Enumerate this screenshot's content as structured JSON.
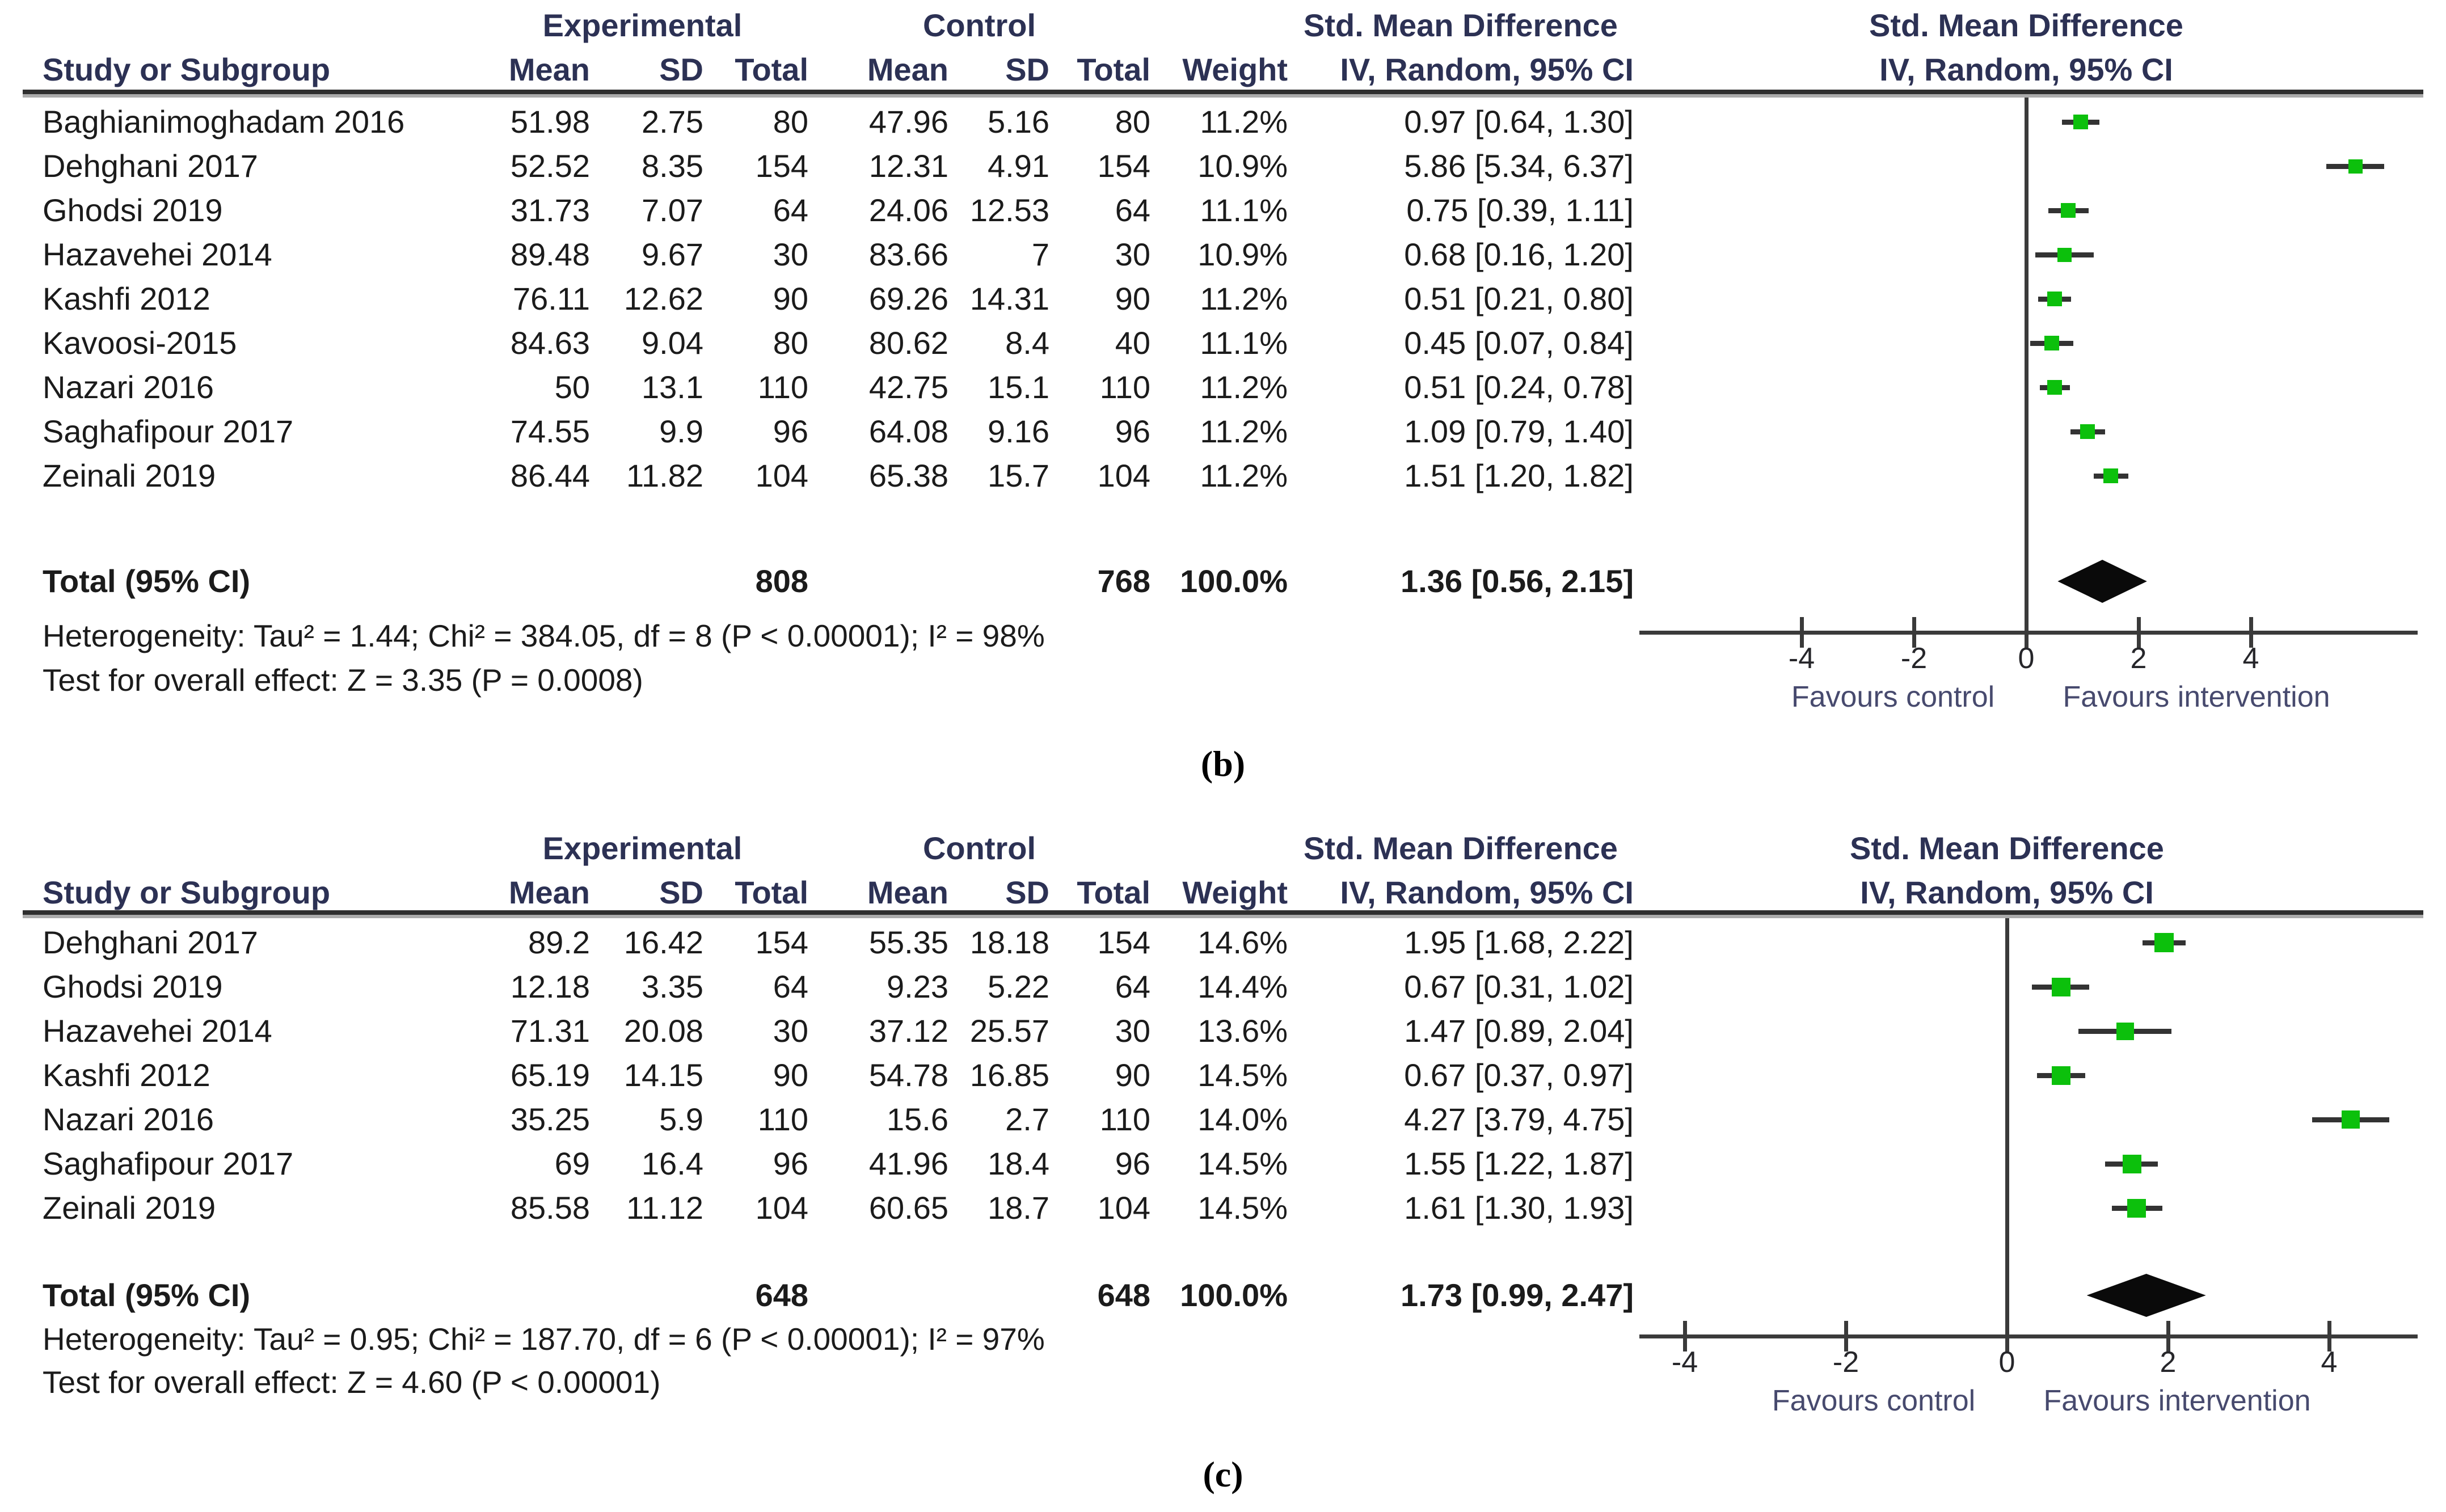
{
  "figure": {
    "panels": [
      {
        "id": "b",
        "label": "(b)",
        "group_headers": {
          "experimental": "Experimental",
          "control": "Control",
          "smd": "Std. Mean Difference",
          "plot_line1": "Std. Mean Difference",
          "plot_line2": "IV, Random, 95% CI"
        },
        "columns": {
          "study": "Study or Subgroup",
          "mean1": "Mean",
          "sd1": "SD",
          "total1": "Total",
          "mean2": "Mean",
          "sd2": "SD",
          "total2": "Total",
          "weight": "Weight",
          "ci": "IV, Random, 95% CI"
        },
        "rows": [
          {
            "study": "Baghianimoghadam 2016",
            "mean1": "51.98",
            "sd1": "2.75",
            "total1": "80",
            "mean2": "47.96",
            "sd2": "5.16",
            "total2": "80",
            "weight": "11.2%",
            "ci_text": "0.97 [0.64, 1.30]",
            "est": 0.97,
            "lo": 0.64,
            "hi": 1.3,
            "w": 11.2
          },
          {
            "study": "Dehghani 2017",
            "mean1": "52.52",
            "sd1": "8.35",
            "total1": "154",
            "mean2": "12.31",
            "sd2": "4.91",
            "total2": "154",
            "weight": "10.9%",
            "ci_text": "5.86 [5.34, 6.37]",
            "est": 5.86,
            "lo": 5.34,
            "hi": 6.37,
            "w": 10.9
          },
          {
            "study": "Ghodsi 2019",
            "mean1": "31.73",
            "sd1": "7.07",
            "total1": "64",
            "mean2": "24.06",
            "sd2": "12.53",
            "total2": "64",
            "weight": "11.1%",
            "ci_text": "0.75 [0.39, 1.11]",
            "est": 0.75,
            "lo": 0.39,
            "hi": 1.11,
            "w": 11.1
          },
          {
            "study": "Hazavehei 2014",
            "mean1": "89.48",
            "sd1": "9.67",
            "total1": "30",
            "mean2": "83.66",
            "sd2": "7",
            "total2": "30",
            "weight": "10.9%",
            "ci_text": "0.68 [0.16, 1.20]",
            "est": 0.68,
            "lo": 0.16,
            "hi": 1.2,
            "w": 10.9
          },
          {
            "study": "Kashfi 2012",
            "mean1": "76.11",
            "sd1": "12.62",
            "total1": "90",
            "mean2": "69.26",
            "sd2": "14.31",
            "total2": "90",
            "weight": "11.2%",
            "ci_text": "0.51 [0.21, 0.80]",
            "est": 0.51,
            "lo": 0.21,
            "hi": 0.8,
            "w": 11.2
          },
          {
            "study": "Kavoosi-2015",
            "mean1": "84.63",
            "sd1": "9.04",
            "total1": "80",
            "mean2": "80.62",
            "sd2": "8.4",
            "total2": "40",
            "weight": "11.1%",
            "ci_text": "0.45 [0.07, 0.84]",
            "est": 0.45,
            "lo": 0.07,
            "hi": 0.84,
            "w": 11.1
          },
          {
            "study": "Nazari 2016",
            "mean1": "50",
            "sd1": "13.1",
            "total1": "110",
            "mean2": "42.75",
            "sd2": "15.1",
            "total2": "110",
            "weight": "11.2%",
            "ci_text": "0.51 [0.24, 0.78]",
            "est": 0.51,
            "lo": 0.24,
            "hi": 0.78,
            "w": 11.2
          },
          {
            "study": "Saghafipour 2017",
            "mean1": "74.55",
            "sd1": "9.9",
            "total1": "96",
            "mean2": "64.08",
            "sd2": "9.16",
            "total2": "96",
            "weight": "11.2%",
            "ci_text": "1.09 [0.79, 1.40]",
            "est": 1.09,
            "lo": 0.79,
            "hi": 1.4,
            "w": 11.2
          },
          {
            "study": "Zeinali 2019",
            "mean1": "86.44",
            "sd1": "11.82",
            "total1": "104",
            "mean2": "65.38",
            "sd2": "15.7",
            "total2": "104",
            "weight": "11.2%",
            "ci_text": "1.51 [1.20, 1.82]",
            "est": 1.51,
            "lo": 1.2,
            "hi": 1.82,
            "w": 11.2
          }
        ],
        "total": {
          "label": "Total (95% CI)",
          "total1": "808",
          "total2": "768",
          "weight": "100.0%",
          "ci_text": "1.36 [0.56, 2.15]",
          "est": 1.36,
          "lo": 0.56,
          "hi": 2.15
        },
        "heterogeneity": "Heterogeneity: Tau² = 1.44; Chi² = 384.05, df = 8 (P < 0.00001); I² = 98%",
        "overall_effect": "Test for overall effect: Z = 3.35 (P = 0.0008)",
        "axis": {
          "ticks": [
            -4,
            -2,
            0,
            2,
            4
          ],
          "favours_left": "Favours control",
          "favours_right": "Favours intervention"
        }
      },
      {
        "id": "c",
        "label": "(c)",
        "group_headers": {
          "experimental": "Experimental",
          "control": "Control",
          "smd": "Std. Mean Difference",
          "plot_line1": "Std. Mean Difference",
          "plot_line2": "IV, Random, 95% CI"
        },
        "columns": {
          "study": "Study or Subgroup",
          "mean1": "Mean",
          "sd1": "SD",
          "total1": "Total",
          "mean2": "Mean",
          "sd2": "SD",
          "total2": "Total",
          "weight": "Weight",
          "ci": "IV, Random, 95% CI"
        },
        "rows": [
          {
            "study": "Dehghani 2017",
            "mean1": "89.2",
            "sd1": "16.42",
            "total1": "154",
            "mean2": "55.35",
            "sd2": "18.18",
            "total2": "154",
            "weight": "14.6%",
            "ci_text": "1.95 [1.68, 2.22]",
            "est": 1.95,
            "lo": 1.68,
            "hi": 2.22,
            "w": 14.6
          },
          {
            "study": "Ghodsi 2019",
            "mean1": "12.18",
            "sd1": "3.35",
            "total1": "64",
            "mean2": "9.23",
            "sd2": "5.22",
            "total2": "64",
            "weight": "14.4%",
            "ci_text": "0.67 [0.31, 1.02]",
            "est": 0.67,
            "lo": 0.31,
            "hi": 1.02,
            "w": 14.4
          },
          {
            "study": "Hazavehei 2014",
            "mean1": "71.31",
            "sd1": "20.08",
            "total1": "30",
            "mean2": "37.12",
            "sd2": "25.57",
            "total2": "30",
            "weight": "13.6%",
            "ci_text": "1.47 [0.89, 2.04]",
            "est": 1.47,
            "lo": 0.89,
            "hi": 2.04,
            "w": 13.6
          },
          {
            "study": "Kashfi 2012",
            "mean1": "65.19",
            "sd1": "14.15",
            "total1": "90",
            "mean2": "54.78",
            "sd2": "16.85",
            "total2": "90",
            "weight": "14.5%",
            "ci_text": "0.67 [0.37, 0.97]",
            "est": 0.67,
            "lo": 0.37,
            "hi": 0.97,
            "w": 14.5
          },
          {
            "study": "Nazari 2016",
            "mean1": "35.25",
            "sd1": "5.9",
            "total1": "110",
            "mean2": "15.6",
            "sd2": "2.7",
            "total2": "110",
            "weight": "14.0%",
            "ci_text": "4.27 [3.79, 4.75]",
            "est": 4.27,
            "lo": 3.79,
            "hi": 4.75,
            "w": 14.0
          },
          {
            "study": "Saghafipour 2017",
            "mean1": "69",
            "sd1": "16.4",
            "total1": "96",
            "mean2": "41.96",
            "sd2": "18.4",
            "total2": "96",
            "weight": "14.5%",
            "ci_text": "1.55 [1.22, 1.87]",
            "est": 1.55,
            "lo": 1.22,
            "hi": 1.87,
            "w": 14.5
          },
          {
            "study": "Zeinali 2019",
            "mean1": "85.58",
            "sd1": "11.12",
            "total1": "104",
            "mean2": "60.65",
            "sd2": "18.7",
            "total2": "104",
            "weight": "14.5%",
            "ci_text": "1.61 [1.30, 1.93]",
            "est": 1.61,
            "lo": 1.3,
            "hi": 1.93,
            "w": 14.5
          }
        ],
        "total": {
          "label": "Total (95% CI)",
          "total1": "648",
          "total2": "648",
          "weight": "100.0%",
          "ci_text": "1.73 [0.99, 2.47]",
          "est": 1.73,
          "lo": 0.99,
          "hi": 2.47
        },
        "heterogeneity": "Heterogeneity: Tau² = 0.95; Chi² = 187.70, df = 6 (P < 0.00001); I² = 97%",
        "overall_effect": "Test for overall effect: Z = 4.60 (P < 0.00001)",
        "axis": {
          "ticks": [
            -4,
            -2,
            0,
            2,
            4
          ],
          "favours_left": "Favours control",
          "favours_right": "Favours intervention"
        }
      }
    ],
    "colors": {
      "marker_green": "#0cc00c",
      "diamond_black": "#0a0a0a",
      "line_gray": "#3a3a3a",
      "header_navy": "#2c3154",
      "favours_text": "#474a6e"
    }
  },
  "chart_data": [
    {
      "type": "scatter",
      "subtype": "forest-plot",
      "panel": "(b)",
      "title": "Std. Mean Difference — IV, Random, 95% CI",
      "categories": [
        "Baghianimoghadam 2016",
        "Dehghani 2017",
        "Ghodsi 2019",
        "Hazavehei 2014",
        "Kashfi 2012",
        "Kavoosi-2015",
        "Nazari 2016",
        "Saghafipour 2017",
        "Zeinali 2019"
      ],
      "estimates": [
        0.97,
        5.86,
        0.75,
        0.68,
        0.51,
        0.45,
        0.51,
        1.09,
        1.51
      ],
      "ci_low": [
        0.64,
        5.34,
        0.39,
        0.16,
        0.21,
        0.07,
        0.24,
        0.79,
        1.2
      ],
      "ci_high": [
        1.3,
        6.37,
        1.11,
        1.2,
        0.8,
        0.84,
        0.78,
        1.4,
        1.82
      ],
      "weights_pct": [
        11.2,
        10.9,
        11.1,
        10.9,
        11.2,
        11.1,
        11.2,
        11.2,
        11.2
      ],
      "summary": {
        "estimate": 1.36,
        "ci_low": 0.56,
        "ci_high": 2.15,
        "total_exp": 808,
        "total_ctl": 768
      },
      "x_ticks": [
        -4,
        -2,
        0,
        2,
        4
      ],
      "xlim": [
        -6.9,
        7.0
      ],
      "xlabel": "Favours control (left) / Favours intervention (right)",
      "grid": false,
      "legend": false
    },
    {
      "type": "scatter",
      "subtype": "forest-plot",
      "panel": "(c)",
      "title": "Std. Mean Difference — IV, Random, 95% CI",
      "categories": [
        "Dehghani 2017",
        "Ghodsi 2019",
        "Hazavehei 2014",
        "Kashfi 2012",
        "Nazari 2016",
        "Saghafipour 2017",
        "Zeinali 2019"
      ],
      "estimates": [
        1.95,
        0.67,
        1.47,
        0.67,
        4.27,
        1.55,
        1.61
      ],
      "ci_low": [
        1.68,
        0.31,
        0.89,
        0.37,
        3.79,
        1.22,
        1.3
      ],
      "ci_high": [
        2.22,
        1.02,
        2.04,
        0.97,
        4.75,
        1.87,
        1.93
      ],
      "weights_pct": [
        14.6,
        14.4,
        13.6,
        14.5,
        14.0,
        14.5,
        14.5
      ],
      "summary": {
        "estimate": 1.73,
        "ci_low": 0.99,
        "ci_high": 2.47,
        "total_exp": 648,
        "total_ctl": 648
      },
      "x_ticks": [
        -4,
        -2,
        0,
        2,
        4
      ],
      "xlim": [
        -4.6,
        5.0
      ],
      "xlabel": "Favours control (left) / Favours intervention (right)",
      "grid": false,
      "legend": false
    }
  ]
}
